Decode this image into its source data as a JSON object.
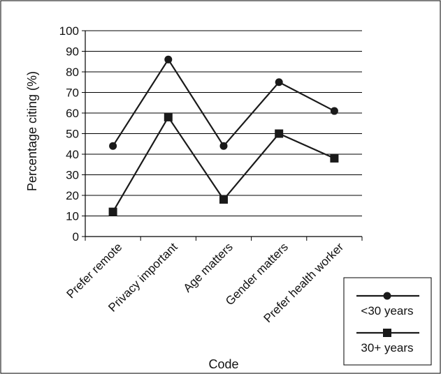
{
  "chart_data": {
    "type": "line",
    "title": "",
    "xlabel": "Code",
    "ylabel": "Percentage citing (%)",
    "ylim": [
      0,
      100
    ],
    "yticks": [
      0,
      10,
      20,
      30,
      40,
      50,
      60,
      70,
      80,
      90,
      100
    ],
    "categories": [
      "Prefer remote",
      "Privacy important",
      "Age matters",
      "Gender matters",
      "Prefer health worker"
    ],
    "series": [
      {
        "name": "<30 years",
        "marker": "circle",
        "values": [
          44,
          86,
          44,
          75,
          61
        ]
      },
      {
        "name": "30+ years",
        "marker": "square",
        "values": [
          12,
          58,
          18,
          50,
          38
        ]
      }
    ],
    "grid": true,
    "legend_position": "bottom-right",
    "colors": {
      "line": "#1a1a1a",
      "grid": "#000000",
      "frame": "#000000"
    }
  }
}
